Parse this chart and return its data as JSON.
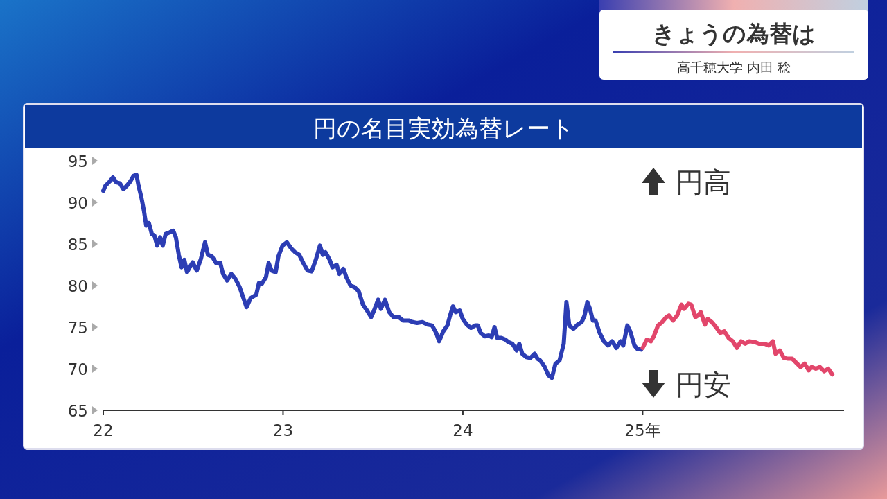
{
  "chart_data": {
    "type": "line",
    "title": "円の名目実効為替レート",
    "annotations": [
      "きょうの為替は",
      "高千穂大学 内田 稔",
      "円高",
      "円安"
    ],
    "xlim": [
      22,
      26.12
    ],
    "xticks": [
      22,
      23,
      24,
      {
        "value": 25,
        "label": "25年"
      }
    ],
    "ylim": [
      65,
      95
    ],
    "yticks": [
      65,
      70,
      75,
      80,
      85,
      90,
      95
    ],
    "grid": false,
    "series": [
      {
        "color": "#2c3db4",
        "x": [
          22.0,
          22.012,
          22.035,
          22.054,
          22.073,
          22.092,
          22.112,
          22.131,
          22.15,
          22.169,
          22.185,
          22.196,
          22.212,
          22.227,
          22.239,
          22.254,
          22.27,
          22.285,
          22.3,
          22.316,
          22.331,
          22.347,
          22.37,
          22.389,
          22.404,
          22.42,
          22.435,
          22.451,
          22.466,
          22.481,
          22.497,
          22.52,
          22.543,
          22.566,
          22.582,
          22.605,
          22.628,
          22.651,
          22.666,
          22.689,
          22.712,
          22.735,
          22.759,
          22.797,
          22.82,
          22.851,
          22.866,
          22.882,
          22.905,
          22.92,
          22.936,
          22.959,
          22.974,
          22.997,
          23.021,
          23.044,
          23.067,
          23.09,
          23.113,
          23.136,
          23.159,
          23.182,
          23.205,
          23.221,
          23.236,
          23.259,
          23.275,
          23.298,
          23.313,
          23.336,
          23.352,
          23.375,
          23.398,
          23.421,
          23.444,
          23.467,
          23.49,
          23.506,
          23.529,
          23.544,
          23.567,
          23.59,
          23.614,
          23.644,
          23.667,
          23.698,
          23.721,
          23.745,
          23.775,
          23.806,
          23.829,
          23.852,
          23.868,
          23.891,
          23.914,
          23.929,
          23.945,
          23.96,
          23.983,
          23.999,
          24.022,
          24.045,
          24.068,
          24.083,
          24.099,
          24.122,
          24.145,
          24.16,
          24.176,
          24.191,
          24.214,
          24.237,
          24.253,
          24.276,
          24.299,
          24.314,
          24.33,
          24.353,
          24.376,
          24.399,
          24.415,
          24.43,
          24.453,
          24.476,
          24.495,
          24.515,
          24.538,
          24.561,
          24.576,
          24.592,
          24.615,
          24.638,
          24.661,
          24.677,
          24.692,
          24.707,
          24.723,
          24.738,
          24.761,
          24.784,
          24.807,
          24.83,
          24.854,
          24.877,
          24.892,
          24.915,
          24.931,
          24.954,
          24.969,
          24.992
        ],
        "values": [
          91.4,
          92.0,
          92.5,
          93.0,
          92.4,
          92.3,
          91.6,
          92.0,
          92.5,
          93.2,
          93.3,
          92.0,
          90.6,
          88.9,
          87.2,
          87.5,
          86.2,
          86.0,
          84.8,
          85.8,
          84.8,
          86.2,
          86.4,
          86.6,
          85.8,
          83.7,
          82.2,
          83.1,
          81.6,
          82.2,
          82.8,
          81.8,
          83.2,
          85.2,
          83.7,
          83.5,
          82.7,
          82.7,
          81.4,
          80.6,
          81.4,
          80.8,
          79.8,
          77.4,
          78.5,
          78.9,
          80.3,
          80.2,
          81.0,
          82.7,
          81.8,
          81.6,
          83.5,
          84.8,
          85.2,
          84.5,
          84.0,
          83.7,
          82.7,
          81.8,
          81.7,
          83.1,
          84.8,
          83.7,
          84.0,
          83.1,
          82.2,
          82.5,
          81.4,
          82.0,
          81.0,
          80.0,
          79.8,
          79.3,
          77.7,
          77.0,
          76.2,
          77.0,
          78.3,
          77.2,
          78.3,
          76.8,
          76.2,
          76.2,
          75.8,
          75.8,
          75.6,
          75.5,
          75.6,
          75.3,
          75.2,
          74.3,
          73.3,
          74.5,
          75.2,
          76.4,
          77.5,
          76.8,
          77.0,
          76.0,
          75.3,
          74.9,
          75.2,
          75.2,
          74.3,
          73.9,
          74.0,
          73.8,
          75.0,
          73.7,
          73.7,
          73.5,
          73.2,
          73.0,
          72.2,
          73.0,
          71.8,
          71.4,
          71.3,
          71.8,
          71.2,
          71.0,
          70.3,
          69.2,
          68.9,
          70.6,
          71.0,
          73.0,
          78.0,
          75.2,
          74.8,
          75.3,
          75.6,
          76.4,
          78.0,
          77.2,
          75.8,
          75.8,
          74.3,
          73.3,
          72.8,
          73.3,
          72.5,
          73.3,
          72.8,
          75.2,
          74.5,
          72.8,
          72.4,
          72.3
        ]
      },
      {
        "color": "#e2466b",
        "x": [
          25.0,
          25.023,
          25.046,
          25.062,
          25.085,
          25.108,
          25.131,
          25.146,
          25.169,
          25.192,
          25.216,
          25.231,
          25.254,
          25.27,
          25.293,
          25.308,
          25.323,
          25.347,
          25.362,
          25.385,
          25.408,
          25.431,
          25.454,
          25.478,
          25.501,
          25.524,
          25.547,
          25.57,
          25.593,
          25.624,
          25.647,
          25.678,
          25.701,
          25.724,
          25.739,
          25.762,
          25.786,
          25.809,
          25.832,
          25.855,
          25.878,
          25.901,
          25.924,
          25.94,
          25.963,
          25.986,
          26.009,
          26.032,
          26.055
        ],
        "values": [
          72.5,
          73.5,
          73.3,
          73.9,
          75.2,
          75.6,
          76.2,
          76.4,
          75.8,
          76.4,
          77.7,
          77.2,
          77.8,
          77.7,
          76.2,
          76.4,
          76.8,
          75.3,
          76.0,
          75.6,
          75.0,
          74.3,
          74.5,
          73.7,
          73.3,
          72.5,
          73.3,
          73.0,
          73.3,
          73.2,
          73.0,
          73.0,
          72.8,
          73.3,
          71.8,
          72.2,
          71.3,
          71.2,
          71.2,
          70.7,
          70.2,
          70.6,
          69.8,
          70.2,
          70.0,
          70.2,
          69.7,
          70.0,
          69.3
        ]
      }
    ]
  }
}
